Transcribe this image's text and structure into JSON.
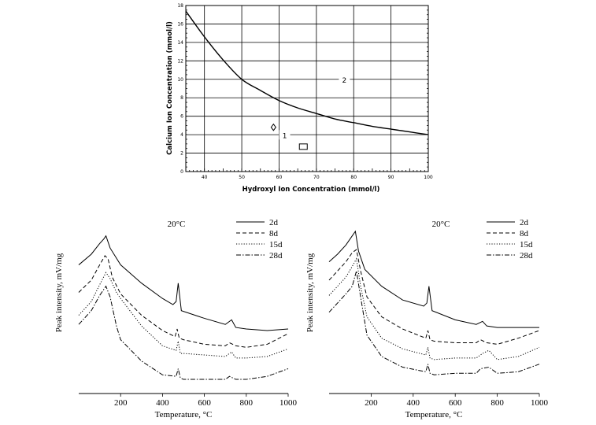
{
  "chart_data": [
    {
      "type": "line",
      "title": "",
      "xlabel": "Hydroxyl Ion Concentration (mmol/l)",
      "ylabel": "Calcium Ion Concentration (mmol/l)",
      "xlim": [
        35,
        100
      ],
      "ylim": [
        0,
        18
      ],
      "xticks": [
        40,
        50,
        60,
        70,
        80,
        90,
        100
      ],
      "yticks": [
        0,
        2,
        4,
        6,
        8,
        10,
        12,
        14,
        16,
        18
      ],
      "grid": true,
      "series": [
        {
          "name": "",
          "x": [
            35,
            40,
            45,
            50,
            55,
            60,
            65,
            70,
            75,
            80,
            85,
            90,
            95,
            100
          ],
          "y": [
            17.4,
            14.6,
            12.1,
            10.0,
            8.8,
            7.7,
            6.9,
            6.3,
            5.7,
            5.3,
            4.9,
            4.6,
            4.3,
            4.0
          ]
        }
      ],
      "annotations": [
        {
          "text": "1",
          "x": 61.5,
          "y": 3.9
        },
        {
          "text": "2",
          "x": 77.5,
          "y": 9.9
        }
      ],
      "markers": [
        {
          "shape": "diamond",
          "x": 58.5,
          "y": 4.8
        },
        {
          "shape": "square",
          "x": 66.5,
          "y": 2.7
        }
      ]
    },
    {
      "type": "line",
      "title": "",
      "annotation": "20°C",
      "xlabel": "Temperature, °C",
      "ylabel": "Peak intensity, mV/mg",
      "xlim": [
        0,
        1000
      ],
      "xticks": [
        200,
        400,
        600,
        800,
        1000
      ],
      "ylim": [
        0,
        100
      ],
      "legend_position": "top-right",
      "series": [
        {
          "name": "2d",
          "style": "solid",
          "x": [
            0,
            60,
            100,
            120,
            130,
            150,
            200,
            300,
            400,
            450,
            465,
            475,
            490,
            600,
            700,
            730,
            750,
            800,
            900,
            1000
          ],
          "y": [
            76,
            83,
            90,
            93,
            95,
            87,
            76,
            64,
            54,
            50,
            52,
            64,
            46,
            41,
            37,
            40,
            35,
            34,
            33,
            34
          ]
        },
        {
          "name": "8d",
          "style": "dashed",
          "x": [
            0,
            60,
            100,
            125,
            140,
            160,
            200,
            300,
            400,
            460,
            470,
            480,
            500,
            600,
            700,
            720,
            750,
            800,
            900,
            1000
          ],
          "y": [
            58,
            66,
            76,
            82,
            80,
            68,
            57,
            43,
            33,
            29,
            34,
            28,
            27,
            24,
            23,
            25,
            23,
            22,
            24,
            31
          ]
        },
        {
          "name": "15d",
          "style": "dotted",
          "x": [
            0,
            60,
            100,
            130,
            150,
            180,
            200,
            300,
            400,
            465,
            475,
            485,
            500,
            600,
            700,
            730,
            750,
            800,
            900,
            1000
          ],
          "y": [
            43,
            52,
            63,
            71,
            67,
            58,
            54,
            36,
            23,
            20,
            26,
            18,
            18,
            17,
            16,
            19,
            15,
            15,
            16,
            21
          ]
        },
        {
          "name": "28d",
          "style": "dashdot",
          "x": [
            0,
            60,
            100,
            130,
            150,
            180,
            200,
            300,
            400,
            465,
            475,
            485,
            500,
            600,
            700,
            720,
            750,
            800,
            900,
            1000
          ],
          "y": [
            37,
            46,
            56,
            62,
            55,
            36,
            27,
            13,
            4,
            3,
            8,
            2,
            1,
            1,
            1,
            3,
            1,
            1,
            3,
            8
          ]
        }
      ]
    },
    {
      "type": "line",
      "title": "",
      "annotation": "20°C",
      "xlabel": "Temperature, °C",
      "ylabel": "Peak intensity, mV/mg",
      "xlim": [
        0,
        1000
      ],
      "xticks": [
        200,
        400,
        600,
        800,
        1000
      ],
      "ylim": [
        0,
        100
      ],
      "legend_position": "top-right",
      "series": [
        {
          "name": "2d",
          "style": "solid",
          "x": [
            0,
            40,
            80,
            110,
            125,
            140,
            170,
            250,
            350,
            450,
            465,
            475,
            490,
            600,
            700,
            730,
            750,
            800,
            900,
            1000
          ],
          "y": [
            78,
            83,
            89,
            95,
            98,
            85,
            73,
            62,
            53,
            49,
            51,
            62,
            46,
            40,
            37,
            39,
            36,
            35,
            35,
            35
          ]
        },
        {
          "name": "8d",
          "style": "dashed",
          "x": [
            0,
            40,
            80,
            110,
            130,
            150,
            180,
            250,
            350,
            460,
            470,
            480,
            500,
            600,
            700,
            720,
            750,
            800,
            900,
            1000
          ],
          "y": [
            66,
            72,
            78,
            84,
            86,
            72,
            55,
            42,
            34,
            28,
            33,
            27,
            26,
            25,
            25,
            27,
            25,
            24,
            28,
            33
          ]
        },
        {
          "name": "15d",
          "style": "dotted",
          "x": [
            0,
            40,
            80,
            110,
            130,
            150,
            180,
            250,
            350,
            460,
            470,
            480,
            500,
            600,
            700,
            730,
            760,
            800,
            900,
            1000
          ],
          "y": [
            56,
            62,
            68,
            75,
            80,
            62,
            42,
            28,
            21,
            17,
            22,
            15,
            14,
            15,
            15,
            18,
            20,
            14,
            16,
            22
          ]
        },
        {
          "name": "28d",
          "style": "dashdot",
          "x": [
            0,
            40,
            80,
            110,
            130,
            150,
            180,
            250,
            350,
            460,
            470,
            480,
            500,
            600,
            700,
            720,
            760,
            800,
            900,
            1000
          ],
          "y": [
            45,
            51,
            57,
            62,
            72,
            55,
            30,
            16,
            9,
            6,
            11,
            5,
            4,
            5,
            5,
            8,
            9,
            5,
            6,
            11
          ]
        }
      ]
    }
  ]
}
